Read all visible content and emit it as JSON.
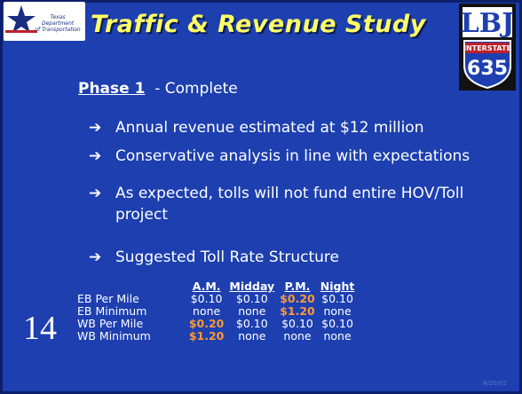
{
  "header": {
    "logo_text": [
      "Texas",
      "Department",
      "of Transportation"
    ],
    "title": "Traffic & Revenue Study",
    "shield": {
      "top": "LBJ",
      "band": "INTERSTATE",
      "number": "635"
    }
  },
  "phase": {
    "label": "Phase 1",
    "status": "- Complete"
  },
  "bullets": [
    "Annual revenue estimated at $12 million",
    "Conservative analysis in line with expectations",
    "As expected, tolls will not fund entire HOV/Toll project",
    "Suggested Toll Rate Structure"
  ],
  "table": {
    "columns": [
      "A.M.",
      "Midday",
      "P.M.",
      "Night"
    ],
    "highlight_color": "#ff9933",
    "rows": [
      {
        "label": "EB  Per Mile",
        "cells": [
          "$0.10",
          "$0.10",
          "$0.20",
          "$0.10"
        ],
        "highlight": [
          2
        ]
      },
      {
        "label": "EB  Minimum",
        "cells": [
          "none",
          "none",
          "$1.20",
          "none"
        ],
        "highlight": [
          2
        ]
      },
      {
        "label": "WB Per Mile",
        "cells": [
          "$0.20",
          "$0.10",
          "$0.10",
          "$0.10"
        ],
        "highlight": [
          0
        ]
      },
      {
        "label": "WB Minimum",
        "cells": [
          "$1.20",
          "none",
          "none",
          "none"
        ],
        "highlight": [
          0
        ]
      }
    ]
  },
  "slide_number": "14",
  "date": "8/20/02"
}
